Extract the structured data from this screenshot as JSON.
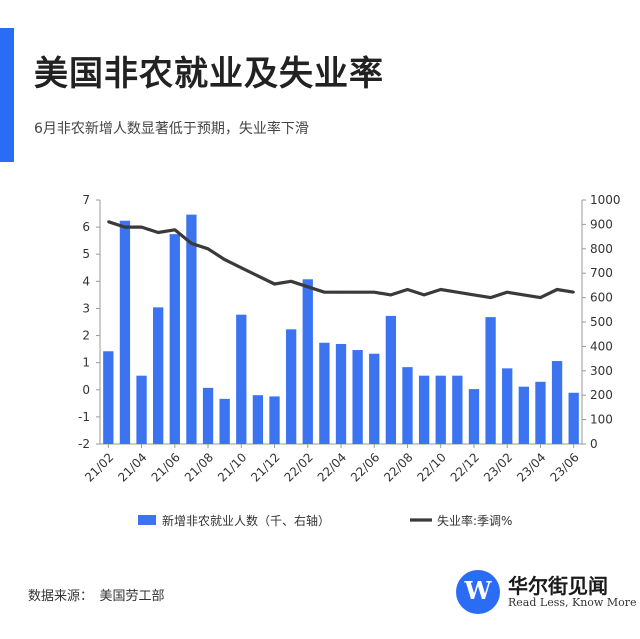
{
  "header": {
    "title": "美国非农就业及失业率",
    "subtitle": "6月非农新增人数显著低于预期，失业率下滑"
  },
  "footer": {
    "source": "数据来源：　美国劳工部",
    "brand_name": "华尔街见闻",
    "brand_tagline": "Read Less, Know More",
    "brand_icon": "wallstreetcn-logo-icon"
  },
  "colors": {
    "accent": "#2a6df4",
    "bar": "#3b73f0",
    "line": "#3a3a3a"
  },
  "chart_data": {
    "type": "bar",
    "categories": [
      "21/02",
      "21/03",
      "21/04",
      "21/05",
      "21/06",
      "21/07",
      "21/08",
      "21/09",
      "21/10",
      "21/11",
      "21/12",
      "22/01",
      "22/02",
      "22/03",
      "22/04",
      "22/05",
      "22/06",
      "22/07",
      "22/08",
      "22/09",
      "22/10",
      "22/11",
      "22/12",
      "23/01",
      "23/02",
      "23/03",
      "23/04",
      "23/05",
      "23/06"
    ],
    "x_tick_labels": [
      "21/02",
      "21/04",
      "21/06",
      "21/08",
      "21/10",
      "21/12",
      "22/02",
      "22/04",
      "22/06",
      "22/08",
      "22/10",
      "22/12",
      "23/02",
      "23/04",
      "23/06"
    ],
    "series": [
      {
        "name": "新增非农就业人数（千、右轴）",
        "kind": "bar",
        "axis": "right",
        "values": [
          380,
          915,
          280,
          560,
          860,
          940,
          230,
          185,
          530,
          200,
          195,
          470,
          675,
          415,
          410,
          385,
          370,
          525,
          315,
          280,
          280,
          280,
          225,
          520,
          310,
          235,
          255,
          340,
          210
        ]
      },
      {
        "name": "失业率:季调%",
        "kind": "line",
        "axis": "left",
        "values": [
          6.2,
          6.0,
          6.0,
          5.8,
          5.9,
          5.4,
          5.2,
          4.8,
          4.5,
          4.2,
          3.9,
          4.0,
          3.8,
          3.6,
          3.6,
          3.6,
          3.6,
          3.5,
          3.7,
          3.5,
          3.7,
          3.6,
          3.5,
          3.4,
          3.6,
          3.5,
          3.4,
          3.7,
          3.6
        ]
      }
    ],
    "left_axis": {
      "range": [
        -2,
        7
      ],
      "ticks": [
        "-2",
        "-1",
        "0",
        "1",
        "2",
        "3",
        "4",
        "5",
        "6",
        "7"
      ]
    },
    "right_axis": {
      "range": [
        0,
        1000
      ],
      "ticks": [
        "0",
        "100",
        "200",
        "300",
        "400",
        "500",
        "600",
        "700",
        "800",
        "900",
        "1000"
      ]
    },
    "grid": false,
    "legend_position": "bottom"
  }
}
